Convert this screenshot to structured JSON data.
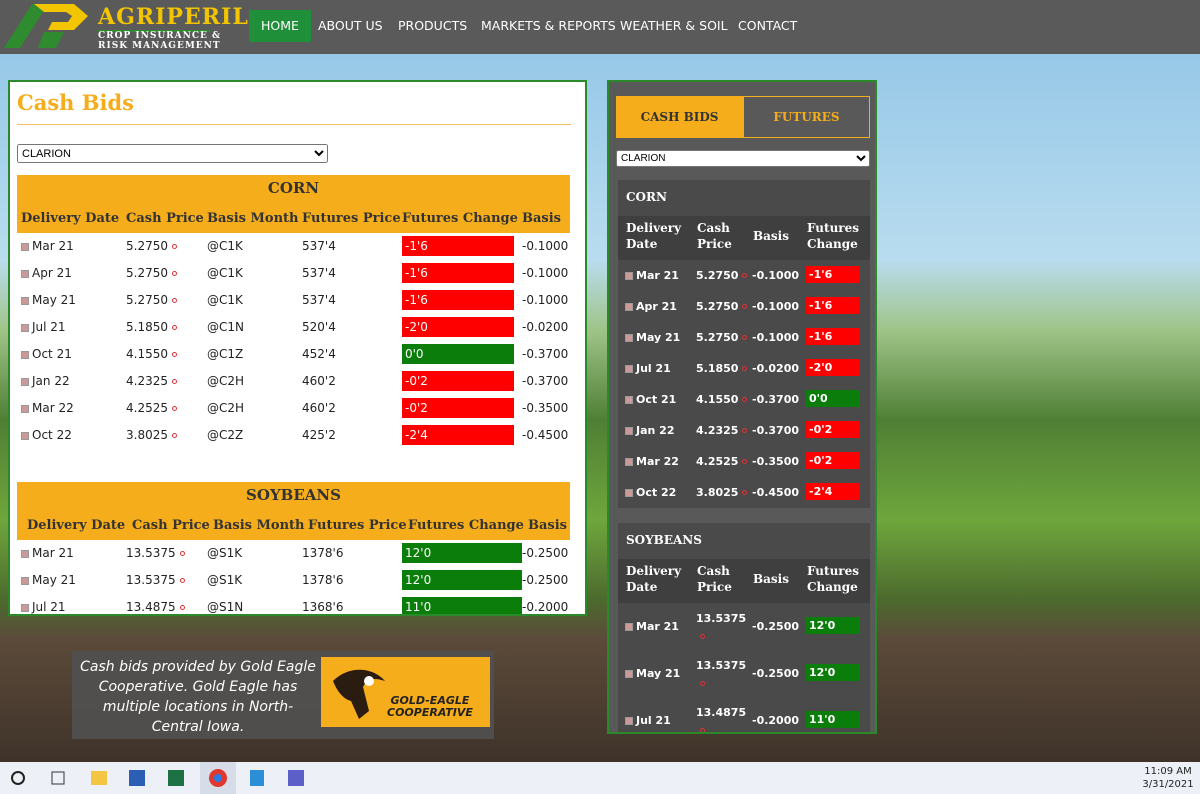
{
  "header": {
    "brand": "AGRIPERIL",
    "tagline": [
      "CROP INSURANCE &",
      "RISK MANAGEMENT"
    ],
    "nav": [
      "HOME",
      "ABOUT US",
      "PRODUCTS",
      "MARKETS & REPORTS",
      "WEATHER & SOIL",
      "CONTACT"
    ]
  },
  "main": {
    "title": "Cash Bids",
    "location": "CLARION",
    "headers": [
      "Delivery Date",
      "Cash Price",
      "Basis Month",
      "Futures Price",
      "Futures Change",
      "Basis"
    ],
    "sections": [
      {
        "title": "CORN",
        "rows": [
          [
            "Mar 21",
            "5.2750",
            "@C1K",
            "537'4",
            "-1'6",
            "-0.1000"
          ],
          [
            "Apr 21",
            "5.2750",
            "@C1K",
            "537'4",
            "-1'6",
            "-0.1000"
          ],
          [
            "May 21",
            "5.2750",
            "@C1K",
            "537'4",
            "-1'6",
            "-0.1000"
          ],
          [
            "Jul 21",
            "5.1850",
            "@C1N",
            "520'4",
            "-2'0",
            "-0.0200"
          ],
          [
            "Oct 21",
            "4.1550",
            "@C1Z",
            "452'4",
            "0'0",
            "-0.3700"
          ],
          [
            "Jan 22",
            "4.2325",
            "@C2H",
            "460'2",
            "-0'2",
            "-0.3700"
          ],
          [
            "Mar 22",
            "4.2525",
            "@C2H",
            "460'2",
            "-0'2",
            "-0.3500"
          ],
          [
            "Oct 22",
            "3.8025",
            "@C2Z",
            "425'2",
            "-2'4",
            "-0.4500"
          ]
        ]
      },
      {
        "title": "SOYBEANS",
        "rows": [
          [
            "Mar 21",
            "13.5375",
            "@S1K",
            "1378'6",
            "12'0",
            "-0.2500"
          ],
          [
            "May 21",
            "13.5375",
            "@S1K",
            "1378'6",
            "12'0",
            "-0.2500"
          ],
          [
            "Jul 21",
            "13.4875",
            "@S1N",
            "1368'6",
            "11'0",
            "-0.2000"
          ]
        ]
      }
    ]
  },
  "sidebar": {
    "tabs": [
      "CASH BIDS",
      "FUTURES"
    ]
  },
  "attribution": {
    "text": "Cash bids provided by Gold Eagle Cooperative. Gold Eagle has multiple locations in North-Central Iowa.",
    "logo": [
      "GOLD-EAGLE",
      "COOPERATIVE"
    ]
  },
  "taskbar": {
    "time": "11:09 AM",
    "date": "3/31/2021"
  }
}
